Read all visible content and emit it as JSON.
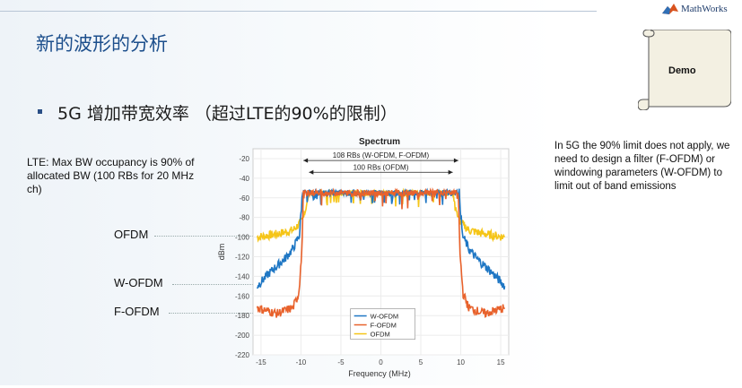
{
  "slide": {
    "title": "新的波形的分析",
    "bullet": "5G 增加带宽效率 （超过LTE的90%的限制）",
    "logo_text": "MathWorks",
    "demo_label": "Demo",
    "note_left": "LTE: Max BW occupancy is 90% of allocated BW (100 RBs for 20 MHz ch)",
    "note_right": "In 5G the 90% limit does not apply, we need to design a filter (F-OFDM) or windowing parameters (W-OFDM) to limit out of band emissions",
    "side_labels": {
      "ofdm": "OFDM",
      "wofdm": "W-OFDM",
      "fofdm": "F-OFDM"
    }
  },
  "colors": {
    "wofdm": "#1f77c4",
    "fofdm": "#e8622c",
    "ofdm": "#f5c518",
    "title": "#1d4f8c"
  },
  "chart_data": {
    "type": "line",
    "title": "Spectrum",
    "xlabel": "Frequency (MHz)",
    "ylabel": "dBm",
    "xlim": [
      -16,
      16
    ],
    "ylim": [
      -220,
      -10
    ],
    "xticks": [
      -15,
      -10,
      -5,
      0,
      5,
      10,
      15
    ],
    "yticks": [
      -20,
      -40,
      -60,
      -80,
      -100,
      -120,
      -140,
      -160,
      -180,
      -200,
      -220
    ],
    "grid": true,
    "legend_position": "bottom-center",
    "annotations": [
      {
        "text": "108 RBs (W-OFDM, F-OFDM)",
        "x_from": -9.7,
        "x_to": 9.7
      },
      {
        "text": "100 RBs (OFDM)",
        "x_from": -9.0,
        "x_to": 9.0
      }
    ],
    "series": [
      {
        "name": "W-OFDM",
        "x": [
          -15.5,
          -14,
          -12,
          -11,
          -10.2,
          -9.8,
          -5,
          0,
          5,
          9.8,
          10.2,
          11,
          12,
          14,
          15.5
        ],
        "y": [
          -150,
          -137,
          -122,
          -112,
          -98,
          -55,
          -55,
          -55,
          -55,
          -55,
          -98,
          -112,
          -122,
          -137,
          -150
        ]
      },
      {
        "name": "F-OFDM",
        "x": [
          -15.5,
          -13,
          -11,
          -10.3,
          -9.9,
          -9.7,
          -5,
          0,
          5,
          9.7,
          9.9,
          10.3,
          11,
          13,
          15.5
        ],
        "y": [
          -172,
          -178,
          -172,
          -158,
          -118,
          -55,
          -55,
          -55,
          -55,
          -55,
          -118,
          -158,
          -172,
          -178,
          -172
        ]
      },
      {
        "name": "OFDM",
        "x": [
          -15.5,
          -13,
          -11,
          -10,
          -9.3,
          -9.0,
          -5,
          0,
          5,
          9.0,
          9.3,
          10,
          11,
          13,
          15.5
        ],
        "y": [
          -100,
          -97,
          -93,
          -85,
          -70,
          -55,
          -55,
          -55,
          -55,
          -55,
          -70,
          -85,
          -93,
          -97,
          -100
        ]
      }
    ]
  }
}
